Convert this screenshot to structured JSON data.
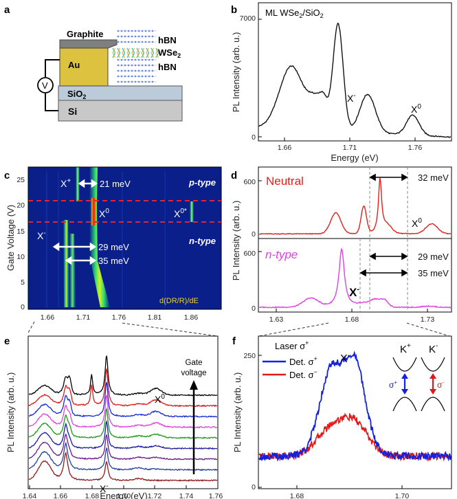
{
  "panels": {
    "a": {
      "label": "a",
      "graphite": "Graphite",
      "hbn_top": "hBN",
      "wse2": "WSe",
      "wse2_sub": "2",
      "hbn_bottom": "hBN",
      "au": "Au",
      "sio2": "SiO",
      "sio2_sub": "2",
      "si": "Si",
      "meter": "V"
    },
    "b": {
      "label": "b",
      "sample_prefix": "ML WSe",
      "sample_sub1": "2",
      "sample_mid": "/SiO",
      "sample_sub2": "2",
      "ylabel": "PL Intensity (arb. u.)",
      "xlabel": "Energy (eV)",
      "yticks": [
        "7000",
        "0"
      ],
      "xticks": [
        "1.66",
        "1.71",
        "1.76"
      ],
      "xminus": "X",
      "xminus_sup": "-",
      "x0": "X",
      "x0_sup": "0"
    },
    "c": {
      "label": "c",
      "ylabel": "Gate Voltage (V)",
      "yticks": [
        "25",
        "20",
        "15",
        "10",
        "5",
        "0"
      ],
      "xticks": [
        "1.66",
        "1.71",
        "1.76",
        "1.81",
        "1.86"
      ],
      "xplus": "X",
      "xplus_sup": "+",
      "x0": "X",
      "x0_sup": "0",
      "x0star": "X",
      "x0star_sup": "0*",
      "xminus": "X",
      "xminus_sup": "-",
      "split_21": "21 meV",
      "split_29": "29 meV",
      "split_35": "35 meV",
      "ptype": "p-type",
      "ntype": "n-type",
      "colorbar_label": "d(DR/R)/dE"
    },
    "d": {
      "label": "d",
      "neutral": "Neutral",
      "ntype": "n-type",
      "ylabel": "PL Intensity (arb. u.)",
      "ytick_top": "600",
      "ytick_bottom": "600",
      "zero_top": "0",
      "zero_bottom": "0",
      "xticks": [
        "1.63",
        "1.68",
        "1.73"
      ],
      "split_32": "32 meV",
      "split_29": "29 meV",
      "split_35": "35 meV",
      "x0": "X",
      "x0_sup": "0",
      "xminus": "X",
      "xminus_sup": "-"
    },
    "e": {
      "label": "e",
      "ylabel": "PL Intensity (arb. u.)",
      "xlabel": "Energy (eV)",
      "xticks": [
        "1.64",
        "1.66",
        "1.68",
        "1.70",
        "1.72",
        "1.74",
        "1.76"
      ],
      "x0": "X",
      "x0_sup": "0",
      "xminus": "X",
      "xminus_sup": "-",
      "gate_line1": "Gate",
      "gate_line2": "voltage"
    },
    "f": {
      "label": "f",
      "ylabel": "PL Intensity (arb. u.)",
      "xlabel": "Energy (eV)",
      "yticks": [
        "250",
        "0"
      ],
      "xticks": [
        "1.68",
        "1.70"
      ],
      "laser": "Laser σ",
      "laser_sup": "+",
      "det_plus": "Det. σ",
      "det_plus_sup": "+",
      "det_minus": "Det. σ",
      "det_minus_sup": "−",
      "xminus": "X",
      "xminus_sup": "-",
      "kplus": "K",
      "kplus_sup": "+",
      "kminus": "K",
      "kminus_sup": "-",
      "sigma_plus": "σ",
      "sigma_plus_sup": "+",
      "sigma_minus": "σ",
      "sigma_minus_sup": "-"
    }
  },
  "colors": {
    "neutral_red": "#e0201a",
    "ntype_magenta": "#e040e0",
    "det_blue": "#1420e0",
    "det_red": "#e01818",
    "map_bg": "#0a1f8a",
    "dash_red": "#ee2222"
  }
}
